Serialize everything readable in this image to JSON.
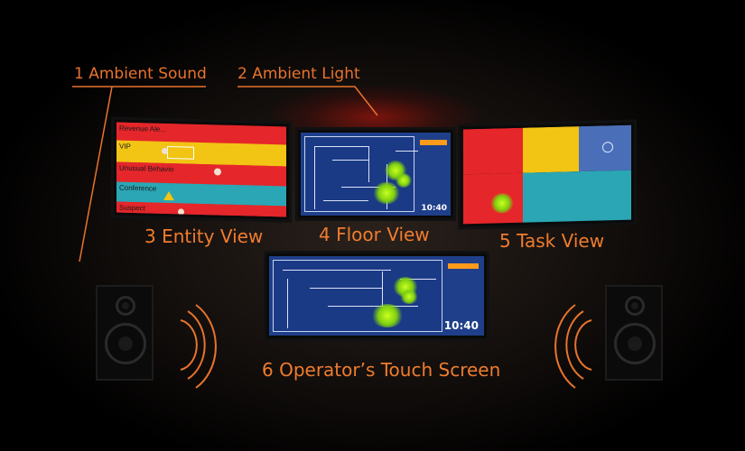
{
  "labels": {
    "ambient_sound": "1 Ambient Sound",
    "ambient_light": "2 Ambient Light",
    "entity_view": "3 Entity View",
    "floor_view": "4 Floor View",
    "task_view": "5 Task View",
    "touch_screen": "6 Operator’s Touch Screen"
  },
  "entity_rows": [
    {
      "label": "Revenue Ale...",
      "color": "#e5262a"
    },
    {
      "label": "VIP",
      "color": "#f2c414"
    },
    {
      "label": "Unusual Behavio",
      "color": "#e5262a"
    },
    {
      "label": "Conference",
      "color": "#2aa6b4"
    },
    {
      "label": "Suspect",
      "color": "#e5262a"
    }
  ],
  "floor_clock": "10:40",
  "touch_clock": "10:40",
  "colors": {
    "accent": "#e8732c",
    "red": "#e5262a",
    "yellow": "#f2c414",
    "teal": "#2aa6b4",
    "blue": "#1f3f8a"
  }
}
